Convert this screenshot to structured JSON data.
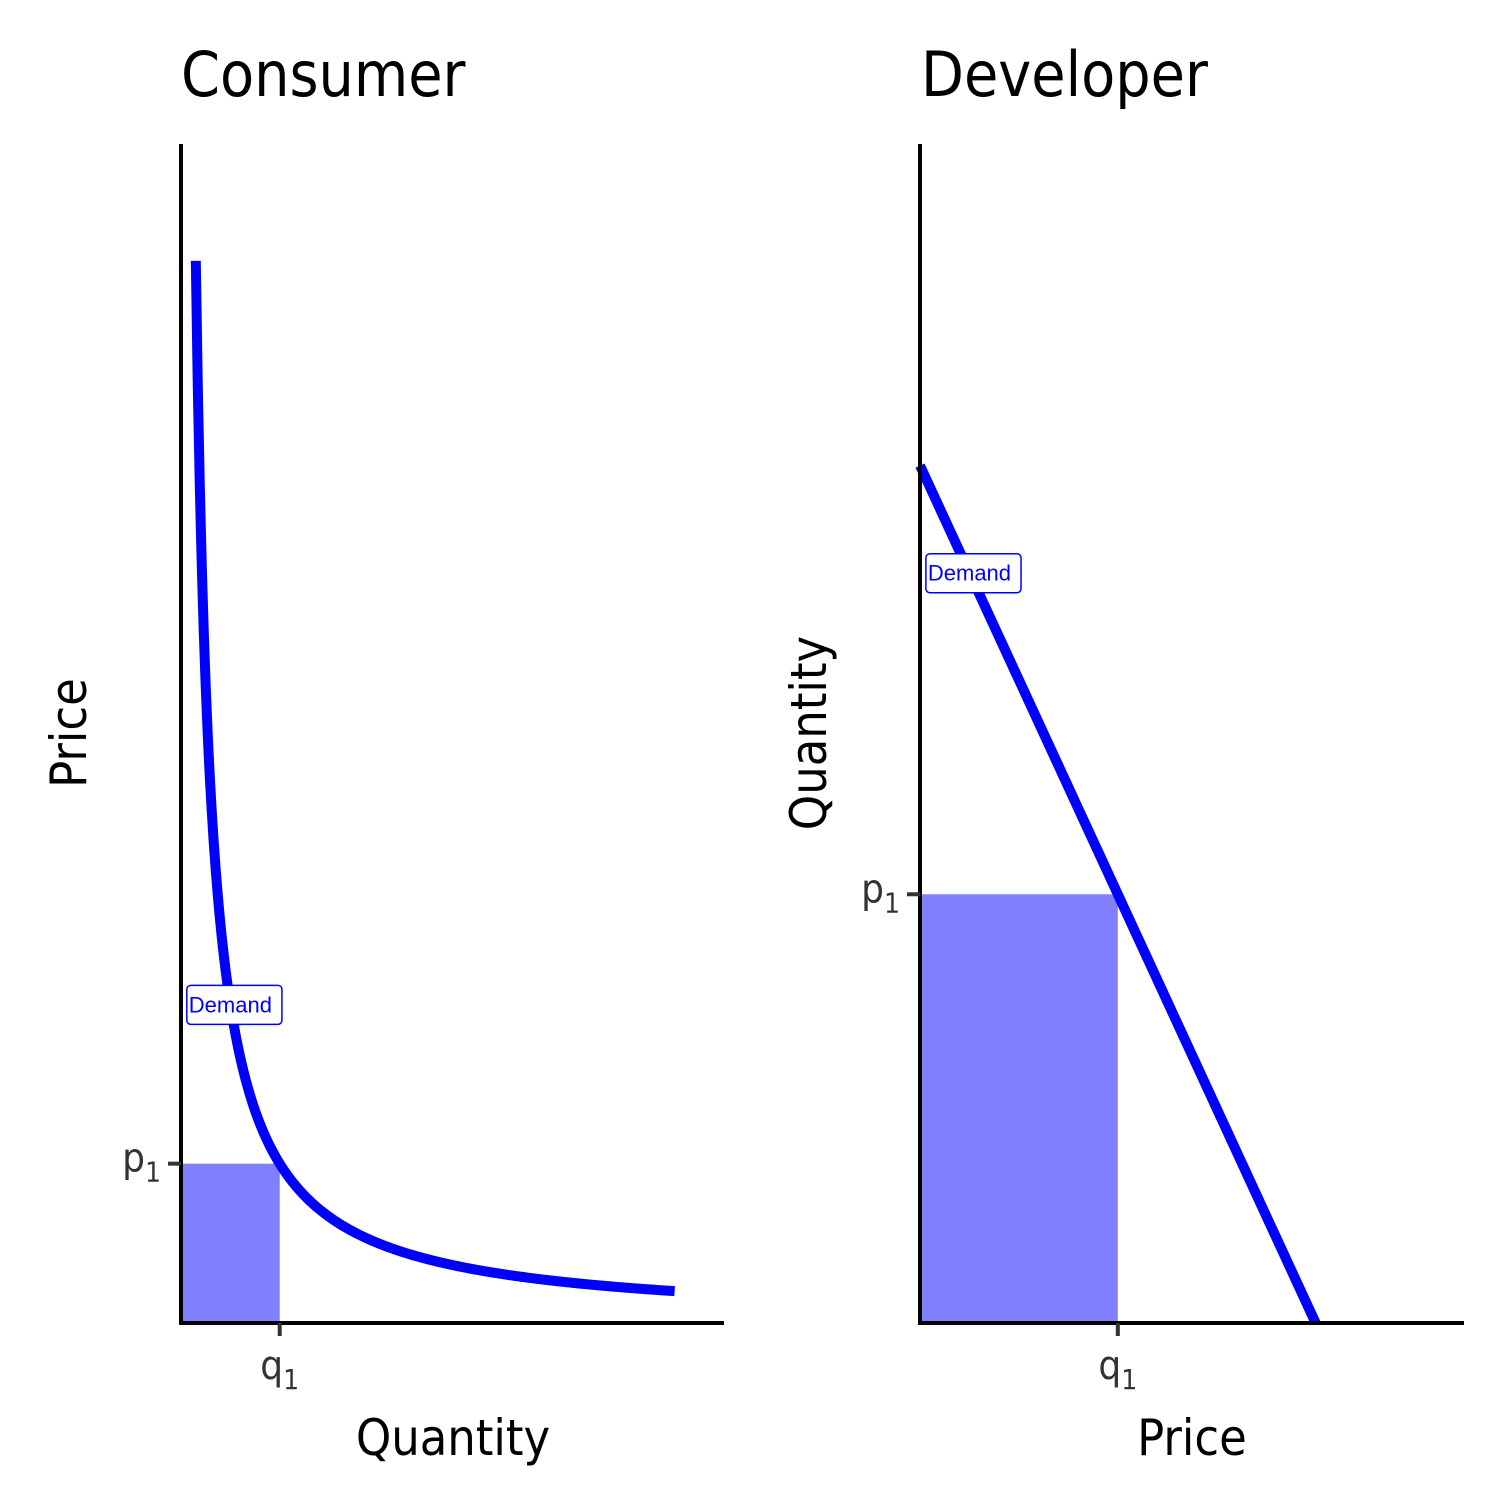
{
  "chart_data": [
    {
      "type": "line",
      "title": "Consumer",
      "xlabel": "Quantity",
      "ylabel": "Price",
      "xlim": [
        0,
        5.5
      ],
      "ylim": [
        0,
        7.4
      ],
      "x_ticks": [
        {
          "label": "q",
          "sub": "1",
          "value": 1
        }
      ],
      "y_ticks": [
        {
          "label": "p",
          "sub": "1",
          "value": 1
        }
      ],
      "series": [
        {
          "curve": "1/x",
          "x": [
            0.15,
            0.2,
            0.3,
            0.4,
            0.5,
            0.6,
            0.7,
            0.8,
            0.9,
            1.0,
            1.2,
            1.5,
            2.0,
            2.5,
            3.0,
            3.5,
            4.0,
            4.5,
            5.0
          ],
          "y": [
            6.67,
            5.0,
            3.33,
            2.5,
            2.0,
            1.67,
            1.43,
            1.25,
            1.11,
            1.0,
            0.83,
            0.67,
            0.5,
            0.4,
            0.33,
            0.29,
            0.25,
            0.22,
            0.2
          ],
          "color": "#0000ff"
        }
      ],
      "shaded_rect": {
        "x": [
          0,
          1
        ],
        "y": [
          0,
          1
        ],
        "color": "#8080ff"
      },
      "annotation": {
        "text": "Demand",
        "x": 0.5,
        "y": 2.0,
        "color": "#0000ff"
      },
      "grid": false
    },
    {
      "type": "line",
      "title": "Developer",
      "xlabel": "Price",
      "ylabel": "Quantity",
      "xlim": [
        0,
        5.5
      ],
      "ylim": [
        0,
        5.5
      ],
      "x_ticks": [
        {
          "label": "q",
          "sub": "1",
          "value": 2
        }
      ],
      "y_ticks": [
        {
          "label": "p",
          "sub": "1",
          "value": 2
        }
      ],
      "series": [
        {
          "curve": "linear",
          "x": [
            0,
            4
          ],
          "y": [
            4,
            0
          ],
          "color": "#0000ff"
        }
      ],
      "shaded_rect": {
        "x": [
          0,
          2
        ],
        "y": [
          0,
          2
        ],
        "color": "#8080ff"
      },
      "annotation": {
        "text": "Demand",
        "x": 0.5,
        "y": 3.5,
        "color": "#0000ff"
      },
      "grid": false
    }
  ]
}
